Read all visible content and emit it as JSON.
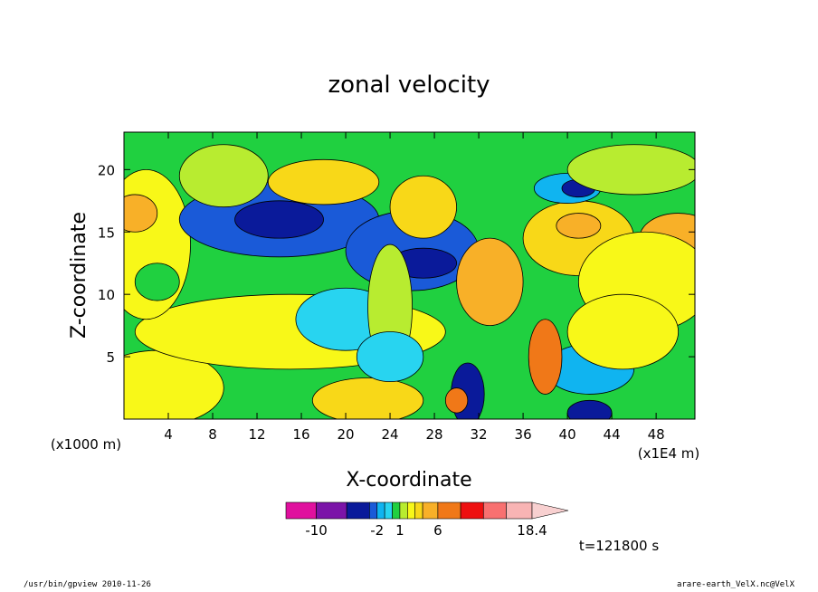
{
  "chart_data": {
    "type": "heatmap",
    "title": "zonal velocity",
    "xlabel": "X-coordinate",
    "ylabel": "Z-coordinate",
    "x_unit_left": "(x1000 m)",
    "x_unit_right": "(x1E4 m)",
    "xlim": [
      0,
      51.5
    ],
    "ylim": [
      0,
      23
    ],
    "x_ticks": [
      4,
      8,
      12,
      16,
      20,
      24,
      28,
      32,
      36,
      40,
      44,
      48
    ],
    "y_ticks": [
      5,
      10,
      15,
      20
    ],
    "colorbar": {
      "labels": [
        "-10",
        "-2",
        "1",
        "6",
        "18.4"
      ],
      "label_values": [
        -10,
        -2,
        1,
        6,
        18.4
      ],
      "levels": [
        -14,
        -10,
        -6,
        -3,
        -2,
        -1,
        0,
        1,
        2,
        3,
        4,
        6,
        9,
        12,
        15,
        18.4
      ],
      "colors": [
        "#e0109e",
        "#7b14a8",
        "#0a1a9a",
        "#1a5ad8",
        "#10b4f0",
        "#28d4f0",
        "#20d040",
        "#b8ec30",
        "#f8f818",
        "#f8d818",
        "#f8b028",
        "#f07818",
        "#ee1010",
        "#f87070",
        "#f8b4b4",
        "#f8d0d0"
      ],
      "extend_max": true
    },
    "annotation": "t=121800 s",
    "fields": {
      "background": "#20d040",
      "blobs": [
        {
          "x": 3,
          "z": 2.5,
          "rx": 6,
          "ry": 3,
          "v": 2.5
        },
        {
          "x": 22,
          "z": 1.5,
          "rx": 5,
          "ry": 1.8,
          "v": 3.5
        },
        {
          "x": 15,
          "z": 7,
          "rx": 14,
          "ry": 3,
          "v": 2
        },
        {
          "x": 2,
          "z": 14,
          "rx": 4,
          "ry": 6,
          "v": 2.5
        },
        {
          "x": 1,
          "z": 16.5,
          "rx": 2,
          "ry": 1.5,
          "v": 5
        },
        {
          "x": 14,
          "z": 16,
          "rx": 9,
          "ry": 3,
          "v": -3
        },
        {
          "x": 14,
          "z": 16,
          "rx": 4,
          "ry": 1.5,
          "v": -6
        },
        {
          "x": 26,
          "z": 13.5,
          "rx": 6,
          "ry": 3.2,
          "v": -3
        },
        {
          "x": 27,
          "z": 12.5,
          "rx": 3,
          "ry": 1.2,
          "v": -6
        },
        {
          "x": 20,
          "z": 8,
          "rx": 4.5,
          "ry": 2.5,
          "v": -1
        },
        {
          "x": 33,
          "z": 11,
          "rx": 3,
          "ry": 3.5,
          "v": 5
        },
        {
          "x": 41,
          "z": 14.5,
          "rx": 5,
          "ry": 3,
          "v": 3.5
        },
        {
          "x": 41,
          "z": 15.5,
          "rx": 2,
          "ry": 1,
          "v": 5
        },
        {
          "x": 50,
          "z": 14.5,
          "rx": 3.5,
          "ry": 2,
          "v": 4
        },
        {
          "x": 47,
          "z": 11,
          "rx": 6,
          "ry": 4,
          "v": 2.5
        },
        {
          "x": 40,
          "z": 18.5,
          "rx": 3,
          "ry": 1.2,
          "v": -2
        },
        {
          "x": 41,
          "z": 18.5,
          "rx": 1.5,
          "ry": 0.7,
          "v": -6
        },
        {
          "x": 18,
          "z": 19,
          "rx": 5,
          "ry": 1.8,
          "v": 3
        },
        {
          "x": 27,
          "z": 17,
          "rx": 3,
          "ry": 2.5,
          "v": 3
        },
        {
          "x": 24,
          "z": 9,
          "rx": 2,
          "ry": 5,
          "v": 1.5
        },
        {
          "x": 42,
          "z": 4,
          "rx": 4,
          "ry": 2,
          "v": -2
        },
        {
          "x": 42,
          "z": 0.5,
          "rx": 2,
          "ry": 1,
          "v": -6
        },
        {
          "x": 38,
          "z": 5,
          "rx": 1.5,
          "ry": 3,
          "v": 6
        },
        {
          "x": 31,
          "z": 2,
          "rx": 1.5,
          "ry": 2.5,
          "v": -6
        },
        {
          "x": 30,
          "z": 1.5,
          "rx": 1,
          "ry": 1,
          "v": 6
        },
        {
          "x": 3,
          "z": 11,
          "rx": 2,
          "ry": 1.5,
          "v": 0.5
        },
        {
          "x": 24,
          "z": 5,
          "rx": 3,
          "ry": 2,
          "v": -1
        },
        {
          "x": 45,
          "z": 7,
          "rx": 5,
          "ry": 3,
          "v": 2
        },
        {
          "x": 46,
          "z": 20,
          "rx": 6,
          "ry": 2,
          "v": 1.5
        },
        {
          "x": 9,
          "z": 19.5,
          "rx": 4,
          "ry": 2.5,
          "v": 1
        }
      ]
    }
  },
  "footer": {
    "left": "/usr/bin/gpview  2010-11-26",
    "right": "arare-earth_VelX.nc@VelX"
  }
}
